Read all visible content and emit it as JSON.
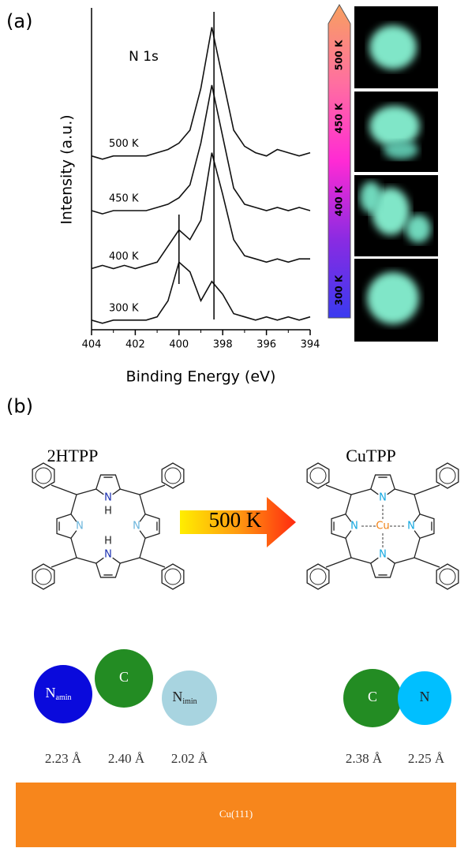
{
  "panel_a": {
    "label": "(a)"
  },
  "chart_data": {
    "type": "line",
    "title": "N 1s",
    "x_label": "Binding Energy (eV)",
    "y_label": "Intensity (a.u.)",
    "x": [
      404,
      403.5,
      403,
      402.5,
      402,
      401.5,
      401,
      400.5,
      400,
      399.5,
      399,
      398.5,
      398,
      397.5,
      397,
      396.5,
      396,
      395.5,
      395,
      394.5,
      394
    ],
    "series": [
      {
        "name": "500 K",
        "color": "#111111",
        "values": [
          54,
          53,
          54,
          54,
          54,
          54,
          55,
          56,
          58,
          62,
          75,
          94,
          78,
          62,
          57,
          55,
          54,
          56,
          55,
          54,
          55
        ]
      },
      {
        "name": "450 K",
        "color": "#111111",
        "values": [
          37,
          36,
          37,
          37,
          37,
          37,
          38,
          39,
          41,
          45,
          58,
          76,
          60,
          44,
          39,
          38,
          37,
          38,
          37,
          38,
          37
        ]
      },
      {
        "name": "400 K",
        "color": "#111111",
        "values": [
          19,
          20,
          19,
          20,
          19,
          20,
          21,
          26,
          31,
          28,
          34,
          55,
          42,
          28,
          23,
          22,
          21,
          22,
          21,
          22,
          22
        ]
      },
      {
        "name": "300 K",
        "color": "#111111",
        "values": [
          3,
          2,
          3,
          3,
          3,
          3,
          4,
          9,
          21,
          18,
          9,
          15,
          11,
          5,
          4,
          3,
          4,
          3,
          4,
          3,
          4
        ]
      }
    ],
    "markers": [
      400,
      398.4
    ],
    "xlim": [
      404,
      394
    ],
    "xticks": [
      404,
      402,
      400,
      398,
      396,
      394
    ],
    "ylim": [
      0,
      100
    ],
    "colorbar": {
      "labels": [
        "500 K",
        "450 K",
        "400 K",
        "300 K"
      ],
      "colors": [
        "#3a3af0",
        "#8a2be2",
        "#ff2ad4",
        "#ff6fa0",
        "#f7a060"
      ]
    }
  },
  "panel_b": {
    "label": "(b)",
    "left_title": "2HTPP",
    "right_title": "CuTPP",
    "arrow_label": "500 K",
    "left_atoms": [
      {
        "label": "N",
        "color": "#1a2fb0"
      },
      {
        "label": "H",
        "color": "#222222"
      },
      {
        "label": "N",
        "color": "#6ab4dc"
      },
      {
        "label": "N",
        "color": "#6ab4dc"
      },
      {
        "label": "H",
        "color": "#222222"
      },
      {
        "label": "N",
        "color": "#1a2fb0"
      }
    ],
    "right_atoms": [
      {
        "label": "N",
        "color": "#12a7e0"
      },
      {
        "label": "N",
        "color": "#12a7e0"
      },
      {
        "label": "Cu",
        "color": "#f07f10"
      },
      {
        "label": "N",
        "color": "#12a7e0"
      },
      {
        "label": "N",
        "color": "#12a7e0"
      }
    ],
    "spheres": [
      {
        "label": "N",
        "sub": "amin",
        "color": "#0a0adc",
        "text_color": "#ffffff",
        "distance": "2.23 Å"
      },
      {
        "label": "C",
        "sub": null,
        "color": "#238c23",
        "text_color": "#ffffff",
        "distance": "2.40 Å"
      },
      {
        "label": "N",
        "sub": "imin",
        "color": "#a8d4e0",
        "text_color": "#222222",
        "distance": "2.02 Å"
      },
      {
        "label": "C",
        "sub": null,
        "color": "#238c23",
        "text_color": "#ffffff",
        "distance": "2.38 Å"
      },
      {
        "label": "N",
        "sub": null,
        "color": "#00bfff",
        "text_color": "#222222",
        "distance": "2.25 Å"
      }
    ],
    "substrate": {
      "label": "Cu(111)",
      "color": "#f7861c"
    }
  }
}
